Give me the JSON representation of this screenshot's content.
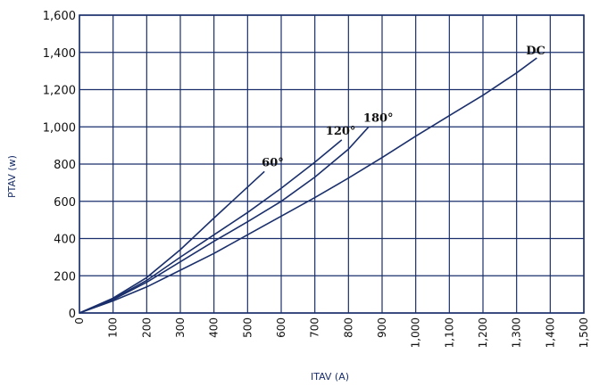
{
  "chart_data": {
    "type": "line",
    "xlabel": "ITAV (A)",
    "ylabel": "PTAV (w)",
    "xlim": [
      0,
      1500
    ],
    "ylim": [
      0,
      1600
    ],
    "x_ticks": [
      0,
      100,
      200,
      300,
      400,
      500,
      600,
      700,
      800,
      900,
      1000,
      1100,
      1200,
      1300,
      1400,
      1500
    ],
    "x_tick_labels": [
      "0",
      "100",
      "200",
      "300",
      "400",
      "500",
      "600",
      "700",
      "800",
      "900",
      "1,000",
      "1,100",
      "1,200",
      "1,300",
      "1,400",
      "1,500"
    ],
    "y_ticks": [
      0,
      200,
      400,
      600,
      800,
      1000,
      1200,
      1400,
      1600
    ],
    "y_tick_labels": [
      "0",
      "200",
      "400",
      "600",
      "800",
      "1,000",
      "1,200",
      "1,400",
      "1,600"
    ],
    "grid": true,
    "series": [
      {
        "name": "60°",
        "x": [
          0,
          100,
          200,
          300,
          400,
          550
        ],
        "y": [
          0,
          80,
          190,
          340,
          510,
          760
        ]
      },
      {
        "name": "120°",
        "x": [
          0,
          100,
          200,
          300,
          400,
          500,
          600,
          700,
          780
        ],
        "y": [
          0,
          75,
          175,
          300,
          420,
          540,
          670,
          810,
          930
        ]
      },
      {
        "name": "180°",
        "x": [
          0,
          100,
          200,
          300,
          400,
          500,
          600,
          700,
          800,
          860
        ],
        "y": [
          0,
          72,
          165,
          275,
          385,
          490,
          600,
          730,
          880,
          1000
        ]
      },
      {
        "name": "DC",
        "x": [
          0,
          100,
          200,
          300,
          400,
          500,
          600,
          700,
          800,
          900,
          1000,
          1100,
          1200,
          1300,
          1360
        ],
        "y": [
          0,
          65,
          140,
          230,
          320,
          420,
          520,
          620,
          725,
          835,
          950,
          1060,
          1170,
          1290,
          1370
        ]
      }
    ]
  }
}
